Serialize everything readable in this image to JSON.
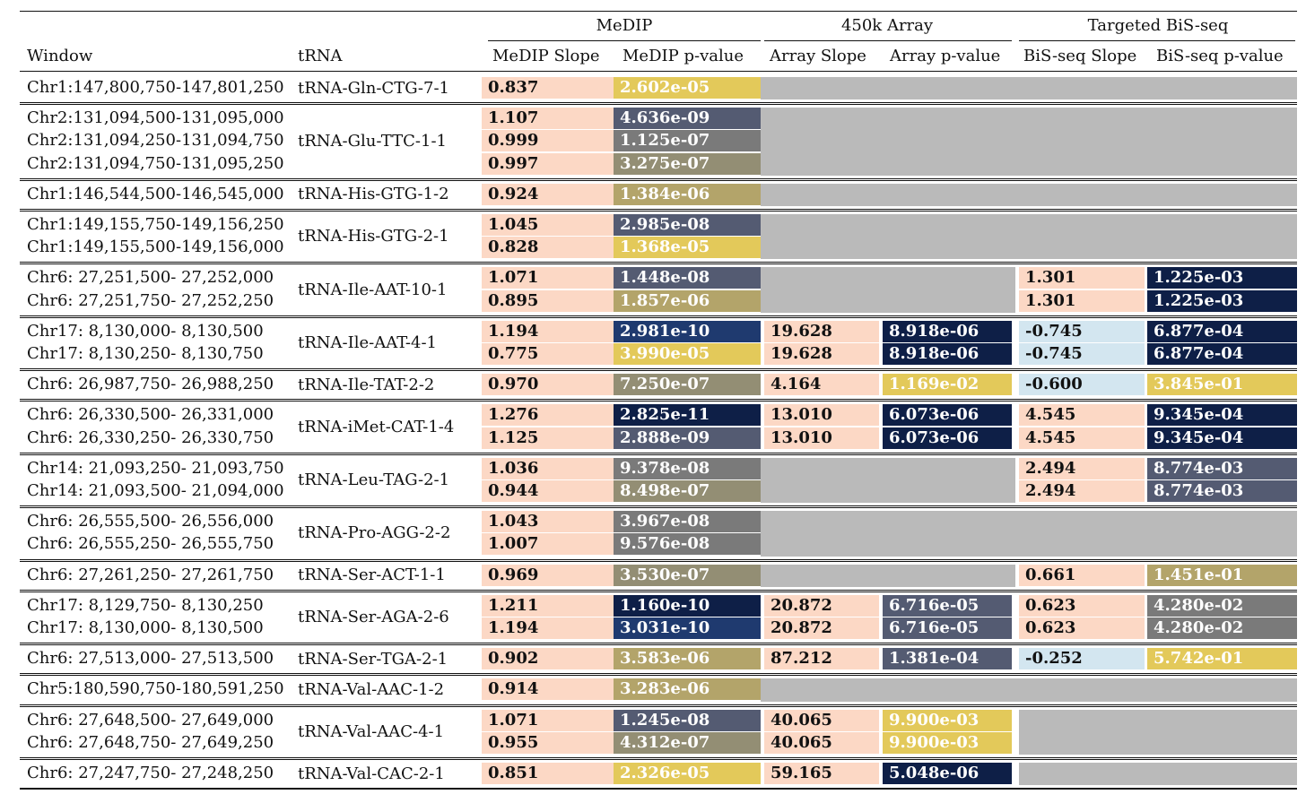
{
  "headers": {
    "groups": {
      "medip": "MeDIP",
      "array": "450k Array",
      "bisseq": "Targeted BiS-seq"
    },
    "window": "Window",
    "trna": "tRNA",
    "medip_slope": "MeDIP Slope",
    "medip_p": "MeDIP p-value",
    "array_slope": "Array Slope",
    "array_p": "Array p-value",
    "bis_slope": "BiS-seq Slope",
    "bis_p": "BiS-seq p-value"
  },
  "colors": {
    "slope_pos": "#fcd8c5",
    "slope_neg": "#d3e6f0",
    "missing": "#bababa",
    "p_scale": [
      "#0e1f47",
      "#1f3a6f",
      "#545b72",
      "#7a7a7a",
      "#938e74",
      "#b3a46a",
      "#e3c95a"
    ]
  },
  "groups": [
    {
      "trna": "tRNA-Gln-CTG-7-1",
      "rows": [
        {
          "window": "Chr1:147,800,750-147,801,250",
          "medip_slope": "0.837",
          "medip_p": "2.602e-05",
          "medip_p_shade": 6
        }
      ],
      "array": null,
      "bis": null
    },
    {
      "trna": "tRNA-Glu-TTC-1-1",
      "rows": [
        {
          "window": "Chr2:131,094,500-131,095,000",
          "medip_slope": "1.107",
          "medip_p": "4.636e-09",
          "medip_p_shade": 2
        },
        {
          "window": "Chr2:131,094,250-131,094,750",
          "medip_slope": "0.999",
          "medip_p": "1.125e-07",
          "medip_p_shade": 3
        },
        {
          "window": "Chr2:131,094,750-131,095,250",
          "medip_slope": "0.997",
          "medip_p": "3.275e-07",
          "medip_p_shade": 4
        }
      ],
      "array": null,
      "bis": null
    },
    {
      "trna": "tRNA-His-GTG-1-2",
      "rows": [
        {
          "window": "Chr1:146,544,500-146,545,000",
          "medip_slope": "0.924",
          "medip_p": "1.384e-06",
          "medip_p_shade": 5
        }
      ],
      "array": null,
      "bis": null
    },
    {
      "trna": "tRNA-His-GTG-2-1",
      "rows": [
        {
          "window": "Chr1:149,155,750-149,156,250",
          "medip_slope": "1.045",
          "medip_p": "2.985e-08",
          "medip_p_shade": 2
        },
        {
          "window": "Chr1:149,155,500-149,156,000",
          "medip_slope": "0.828",
          "medip_p": "1.368e-05",
          "medip_p_shade": 6
        }
      ],
      "array": null,
      "bis": null
    },
    {
      "trna": "tRNA-Ile-AAT-10-1",
      "rows": [
        {
          "window": "Chr6: 27,251,500- 27,252,000",
          "medip_slope": "1.071",
          "medip_p": "1.448e-08",
          "medip_p_shade": 2,
          "bis_slope": "1.301",
          "bis_slope_sign": "pos",
          "bis_p": "1.225e-03",
          "bis_p_shade": 0
        },
        {
          "window": "Chr6: 27,251,750- 27,252,250",
          "medip_slope": "0.895",
          "medip_p": "1.857e-06",
          "medip_p_shade": 5,
          "bis_slope": "1.301",
          "bis_slope_sign": "pos",
          "bis_p": "1.225e-03",
          "bis_p_shade": 0
        }
      ],
      "array": null,
      "bis": true
    },
    {
      "trna": "tRNA-Ile-AAT-4-1",
      "rows": [
        {
          "window": "Chr17: 8,130,000- 8,130,500",
          "medip_slope": "1.194",
          "medip_p": "2.981e-10",
          "medip_p_shade": 1,
          "array_slope": "19.628",
          "array_p": "8.918e-06",
          "array_p_shade": 0,
          "bis_slope": "-0.745",
          "bis_slope_sign": "neg",
          "bis_p": "6.877e-04",
          "bis_p_shade": 0
        },
        {
          "window": "Chr17: 8,130,250- 8,130,750",
          "medip_slope": "0.775",
          "medip_p": "3.990e-05",
          "medip_p_shade": 6,
          "array_slope": "19.628",
          "array_p": "8.918e-06",
          "array_p_shade": 0,
          "bis_slope": "-0.745",
          "bis_slope_sign": "neg",
          "bis_p": "6.877e-04",
          "bis_p_shade": 0
        }
      ],
      "array": true,
      "bis": true
    },
    {
      "trna": "tRNA-Ile-TAT-2-2",
      "rows": [
        {
          "window": "Chr6: 26,987,750- 26,988,250",
          "medip_slope": "0.970",
          "medip_p": "7.250e-07",
          "medip_p_shade": 4,
          "array_slope": "4.164",
          "array_p": "1.169e-02",
          "array_p_shade": 6,
          "bis_slope": "-0.600",
          "bis_slope_sign": "neg",
          "bis_p": "3.845e-01",
          "bis_p_shade": 6
        }
      ],
      "array": true,
      "bis": true
    },
    {
      "trna": "tRNA-iMet-CAT-1-4",
      "rows": [
        {
          "window": "Chr6: 26,330,500- 26,331,000",
          "medip_slope": "1.276",
          "medip_p": "2.825e-11",
          "medip_p_shade": 0,
          "array_slope": "13.010",
          "array_p": "6.073e-06",
          "array_p_shade": 0,
          "bis_slope": "4.545",
          "bis_slope_sign": "pos",
          "bis_p": "9.345e-04",
          "bis_p_shade": 0
        },
        {
          "window": "Chr6: 26,330,250- 26,330,750",
          "medip_slope": "1.125",
          "medip_p": "2.888e-09",
          "medip_p_shade": 2,
          "array_slope": "13.010",
          "array_p": "6.073e-06",
          "array_p_shade": 0,
          "bis_slope": "4.545",
          "bis_slope_sign": "pos",
          "bis_p": "9.345e-04",
          "bis_p_shade": 0
        }
      ],
      "array": true,
      "bis": true
    },
    {
      "trna": "tRNA-Leu-TAG-2-1",
      "rows": [
        {
          "window": "Chr14: 21,093,250- 21,093,750",
          "medip_slope": "1.036",
          "medip_p": "9.378e-08",
          "medip_p_shade": 3,
          "bis_slope": "2.494",
          "bis_slope_sign": "pos",
          "bis_p": "8.774e-03",
          "bis_p_shade": 2
        },
        {
          "window": "Chr14: 21,093,500- 21,094,000",
          "medip_slope": "0.944",
          "medip_p": "8.498e-07",
          "medip_p_shade": 4,
          "bis_slope": "2.494",
          "bis_slope_sign": "pos",
          "bis_p": "8.774e-03",
          "bis_p_shade": 2
        }
      ],
      "array": null,
      "bis": true
    },
    {
      "trna": "tRNA-Pro-AGG-2-2",
      "rows": [
        {
          "window": "Chr6: 26,555,500- 26,556,000",
          "medip_slope": "1.043",
          "medip_p": "3.967e-08",
          "medip_p_shade": 3
        },
        {
          "window": "Chr6: 26,555,250- 26,555,750",
          "medip_slope": "1.007",
          "medip_p": "9.576e-08",
          "medip_p_shade": 3
        }
      ],
      "array": null,
      "bis": null
    },
    {
      "trna": "tRNA-Ser-ACT-1-1",
      "rows": [
        {
          "window": "Chr6: 27,261,250- 27,261,750",
          "medip_slope": "0.969",
          "medip_p": "3.530e-07",
          "medip_p_shade": 4,
          "bis_slope": "0.661",
          "bis_slope_sign": "pos",
          "bis_p": "1.451e-01",
          "bis_p_shade": 5
        }
      ],
      "array": null,
      "bis": true
    },
    {
      "trna": "tRNA-Ser-AGA-2-6",
      "rows": [
        {
          "window": "Chr17: 8,129,750- 8,130,250",
          "medip_slope": "1.211",
          "medip_p": "1.160e-10",
          "medip_p_shade": 0,
          "array_slope": "20.872",
          "array_p": "6.716e-05",
          "array_p_shade": 2,
          "bis_slope": "0.623",
          "bis_slope_sign": "pos",
          "bis_p": "4.280e-02",
          "bis_p_shade": 3
        },
        {
          "window": "Chr17: 8,130,000- 8,130,500",
          "medip_slope": "1.194",
          "medip_p": "3.031e-10",
          "medip_p_shade": 1,
          "array_slope": "20.872",
          "array_p": "6.716e-05",
          "array_p_shade": 2,
          "bis_slope": "0.623",
          "bis_slope_sign": "pos",
          "bis_p": "4.280e-02",
          "bis_p_shade": 3
        }
      ],
      "array": true,
      "bis": true
    },
    {
      "trna": "tRNA-Ser-TGA-2-1",
      "rows": [
        {
          "window": "Chr6: 27,513,000- 27,513,500",
          "medip_slope": "0.902",
          "medip_p": "3.583e-06",
          "medip_p_shade": 5,
          "array_slope": "87.212",
          "array_p": "1.381e-04",
          "array_p_shade": 2,
          "bis_slope": "-0.252",
          "bis_slope_sign": "neg",
          "bis_p": "5.742e-01",
          "bis_p_shade": 6
        }
      ],
      "array": true,
      "bis": true
    },
    {
      "trna": "tRNA-Val-AAC-1-2",
      "rows": [
        {
          "window": "Chr5:180,590,750-180,591,250",
          "medip_slope": "0.914",
          "medip_p": "3.283e-06",
          "medip_p_shade": 5
        }
      ],
      "array": null,
      "bis": null
    },
    {
      "trna": "tRNA-Val-AAC-4-1",
      "rows": [
        {
          "window": "Chr6: 27,648,500- 27,649,000",
          "medip_slope": "1.071",
          "medip_p": "1.245e-08",
          "medip_p_shade": 2,
          "array_slope": "40.065",
          "array_p": "9.900e-03",
          "array_p_shade": 6
        },
        {
          "window": "Chr6: 27,648,750- 27,649,250",
          "medip_slope": "0.955",
          "medip_p": "4.312e-07",
          "medip_p_shade": 4,
          "array_slope": "40.065",
          "array_p": "9.900e-03",
          "array_p_shade": 6
        }
      ],
      "array": true,
      "bis": null
    },
    {
      "trna": "tRNA-Val-CAC-2-1",
      "rows": [
        {
          "window": "Chr6: 27,247,750- 27,248,250",
          "medip_slope": "0.851",
          "medip_p": "2.326e-05",
          "medip_p_shade": 6,
          "array_slope": "59.165",
          "array_p": "5.048e-06",
          "array_p_shade": 0
        }
      ],
      "array": true,
      "bis": null
    }
  ]
}
